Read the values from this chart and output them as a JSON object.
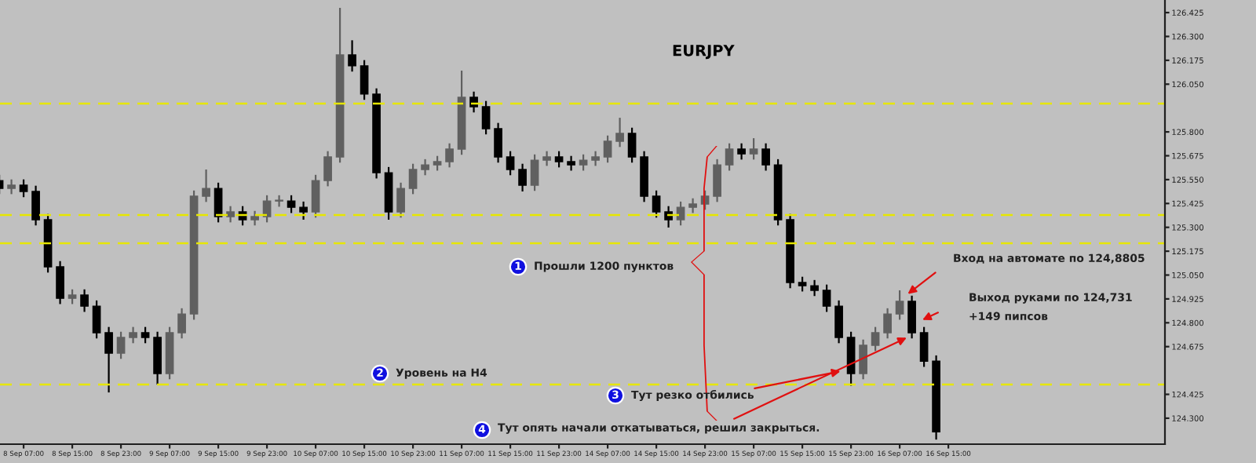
{
  "chart_data": {
    "type": "candlestick",
    "title": "EURJPY",
    "categories": [
      null,
      null,
      "8 Sep 07:00",
      null,
      null,
      null,
      "8 Sep 15:00",
      null,
      null,
      null,
      "8 Sep 23:00",
      null,
      null,
      null,
      "9 Sep 07:00",
      null,
      null,
      null,
      "9 Sep 15:00",
      null,
      null,
      null,
      "9 Sep 23:00",
      null,
      null,
      null,
      "10 Sep 07:00",
      null,
      null,
      null,
      "10 Sep 15:00",
      null,
      null,
      null,
      "10 Sep 23:00",
      null,
      null,
      null,
      "11 Sep 07:00",
      null,
      null,
      null,
      "11 Sep 15:00",
      null,
      null,
      null,
      "11 Sep 23:00",
      null,
      null,
      null,
      "14 Sep 07:00",
      null,
      null,
      null,
      "14 Sep 15:00",
      null,
      null,
      null,
      "14 Sep 23:00",
      null,
      null,
      null,
      "15 Sep 07:00",
      null,
      null,
      null,
      "15 Sep 15:00",
      null,
      null,
      null,
      "15 Sep 23:00",
      null,
      null,
      null,
      "16 Sep 07:00",
      null,
      null,
      null,
      "16 Sep 15:00",
      null,
      null,
      null,
      null,
      null,
      null,
      null,
      null,
      null,
      null,
      null,
      null,
      null,
      null,
      null,
      null,
      null,
      null
    ],
    "ohlc": [
      [
        125.545,
        125.575,
        125.474,
        125.504
      ],
      [
        125.504,
        125.551,
        125.474,
        125.521
      ],
      [
        125.521,
        125.551,
        125.458,
        125.488
      ],
      [
        125.488,
        125.518,
        125.31,
        125.34
      ],
      [
        125.34,
        125.37,
        125.063,
        125.093
      ],
      [
        125.093,
        125.123,
        124.898,
        124.928
      ],
      [
        124.928,
        124.975,
        124.898,
        124.945
      ],
      [
        124.945,
        124.975,
        124.857,
        124.887
      ],
      [
        124.887,
        124.917,
        124.718,
        124.748
      ],
      [
        124.748,
        124.778,
        124.435,
        124.641
      ],
      [
        124.641,
        124.753,
        124.611,
        124.723
      ],
      [
        124.723,
        124.778,
        124.693,
        124.748
      ],
      [
        124.748,
        124.778,
        124.693,
        124.723
      ],
      [
        124.723,
        124.753,
        124.476,
        124.534
      ],
      [
        124.534,
        124.778,
        124.504,
        124.748
      ],
      [
        124.748,
        124.876,
        124.718,
        124.846
      ],
      [
        124.846,
        125.493,
        124.816,
        125.463
      ],
      [
        125.463,
        125.603,
        125.433,
        125.504
      ],
      [
        125.504,
        125.534,
        125.326,
        125.356
      ],
      [
        125.356,
        125.411,
        125.326,
        125.381
      ],
      [
        125.381,
        125.411,
        125.31,
        125.34
      ],
      [
        125.34,
        125.386,
        125.31,
        125.356
      ],
      [
        125.356,
        125.468,
        125.326,
        125.438
      ],
      [
        125.438,
        125.468,
        125.408,
        125.438
      ],
      [
        125.438,
        125.468,
        125.375,
        125.405
      ],
      [
        125.405,
        125.435,
        125.34,
        125.381
      ],
      [
        125.381,
        125.575,
        125.351,
        125.545
      ],
      [
        125.545,
        125.699,
        125.515,
        125.669
      ],
      [
        125.669,
        126.45,
        125.639,
        126.203
      ],
      [
        126.203,
        126.28,
        126.116,
        126.146
      ],
      [
        126.146,
        126.176,
        125.968,
        125.998
      ],
      [
        125.998,
        126.028,
        125.556,
        125.586
      ],
      [
        125.586,
        125.616,
        125.34,
        125.381
      ],
      [
        125.381,
        125.534,
        125.351,
        125.504
      ],
      [
        125.504,
        125.633,
        125.474,
        125.603
      ],
      [
        125.603,
        125.657,
        125.573,
        125.627
      ],
      [
        125.627,
        125.674,
        125.597,
        125.644
      ],
      [
        125.644,
        125.74,
        125.614,
        125.71
      ],
      [
        125.71,
        126.121,
        125.68,
        125.981
      ],
      [
        125.981,
        126.011,
        125.902,
        125.932
      ],
      [
        125.932,
        125.962,
        125.787,
        125.817
      ],
      [
        125.817,
        125.847,
        125.639,
        125.669
      ],
      [
        125.669,
        125.699,
        125.573,
        125.603
      ],
      [
        125.603,
        125.633,
        125.488,
        125.521
      ],
      [
        125.521,
        125.682,
        125.491,
        125.652
      ],
      [
        125.652,
        125.699,
        125.622,
        125.669
      ],
      [
        125.669,
        125.699,
        125.614,
        125.644
      ],
      [
        125.644,
        125.674,
        125.597,
        125.627
      ],
      [
        125.627,
        125.682,
        125.597,
        125.652
      ],
      [
        125.652,
        125.699,
        125.622,
        125.669
      ],
      [
        125.669,
        125.781,
        125.639,
        125.751
      ],
      [
        125.751,
        125.874,
        125.721,
        125.792
      ],
      [
        125.792,
        125.822,
        125.639,
        125.669
      ],
      [
        125.669,
        125.699,
        125.433,
        125.463
      ],
      [
        125.463,
        125.493,
        125.351,
        125.381
      ],
      [
        125.381,
        125.411,
        125.299,
        125.34
      ],
      [
        125.34,
        125.435,
        125.31,
        125.405
      ],
      [
        125.405,
        125.452,
        125.375,
        125.422
      ],
      [
        125.422,
        125.493,
        125.392,
        125.463
      ],
      [
        125.463,
        125.657,
        125.433,
        125.627
      ],
      [
        125.627,
        125.74,
        125.597,
        125.71
      ],
      [
        125.71,
        125.74,
        125.655,
        125.685
      ],
      [
        125.685,
        125.767,
        125.655,
        125.71
      ],
      [
        125.71,
        125.74,
        125.597,
        125.627
      ],
      [
        125.627,
        125.657,
        125.31,
        125.34
      ],
      [
        125.34,
        125.37,
        124.981,
        125.011
      ],
      [
        125.011,
        125.041,
        124.964,
        124.994
      ],
      [
        124.994,
        125.024,
        124.94,
        124.97
      ],
      [
        124.97,
        125.0,
        124.857,
        124.887
      ],
      [
        124.887,
        124.917,
        124.693,
        124.723
      ],
      [
        124.723,
        124.753,
        124.47,
        124.534
      ],
      [
        124.534,
        124.712,
        124.504,
        124.682
      ],
      [
        124.682,
        124.778,
        124.652,
        124.748
      ],
      [
        124.748,
        124.876,
        124.718,
        124.846
      ],
      [
        124.846,
        124.97,
        124.816,
        124.912
      ],
      [
        124.912,
        124.942,
        124.718,
        124.748
      ],
      [
        124.748,
        124.778,
        124.569,
        124.599
      ],
      [
        124.599,
        124.629,
        124.188,
        124.229
      ],
      null,
      null,
      null,
      null,
      null,
      null,
      null,
      null,
      null,
      null,
      null,
      null,
      null,
      null,
      null,
      null,
      null,
      null,
      null
    ],
    "ylim": [
      124.164,
      126.491
    ],
    "yticks": [
      {
        "value": 126.425,
        "label": "126.425"
      },
      {
        "value": 126.3,
        "label": "126.300"
      },
      {
        "value": 126.175,
        "label": "126.175"
      },
      {
        "value": 126.05,
        "label": "126.050"
      },
      {
        "value": 125.8,
        "label": "125.800"
      },
      {
        "value": 125.675,
        "label": "125.675"
      },
      {
        "value": 125.55,
        "label": "125.550"
      },
      {
        "value": 125.425,
        "label": "125.425"
      },
      {
        "value": 125.3,
        "label": "125.300"
      },
      {
        "value": 125.175,
        "label": "125.175"
      },
      {
        "value": 125.05,
        "label": "125.050"
      },
      {
        "value": 124.925,
        "label": "124.925"
      },
      {
        "value": 124.8,
        "label": "124.800"
      },
      {
        "value": 124.675,
        "label": "124.675"
      },
      {
        "value": 124.425,
        "label": "124.425"
      },
      {
        "value": 124.3,
        "label": "124.300"
      }
    ],
    "ref_lines": [
      {
        "axis": "y",
        "value": 125.948,
        "color": "#e6e600",
        "line_style": "dashed"
      },
      {
        "axis": "y",
        "value": 125.364,
        "color": "#e6e600",
        "line_style": "dashed"
      },
      {
        "axis": "y",
        "value": 125.216,
        "color": "#e6e600",
        "line_style": "dashed"
      },
      {
        "axis": "y",
        "value": 124.476,
        "color": "#e6e600",
        "line_style": "dashed"
      }
    ],
    "annotations": [
      "1",
      "Прошли 1200 пунктов",
      "2",
      "Уровень на H4",
      "3",
      "Тут резко отбились",
      "4",
      "Тут опять начали откатываться, решил закрыться.",
      "Вход на автомате по 124,8805",
      "Выход руками по 124,731",
      "+149 пипсов"
    ]
  }
}
